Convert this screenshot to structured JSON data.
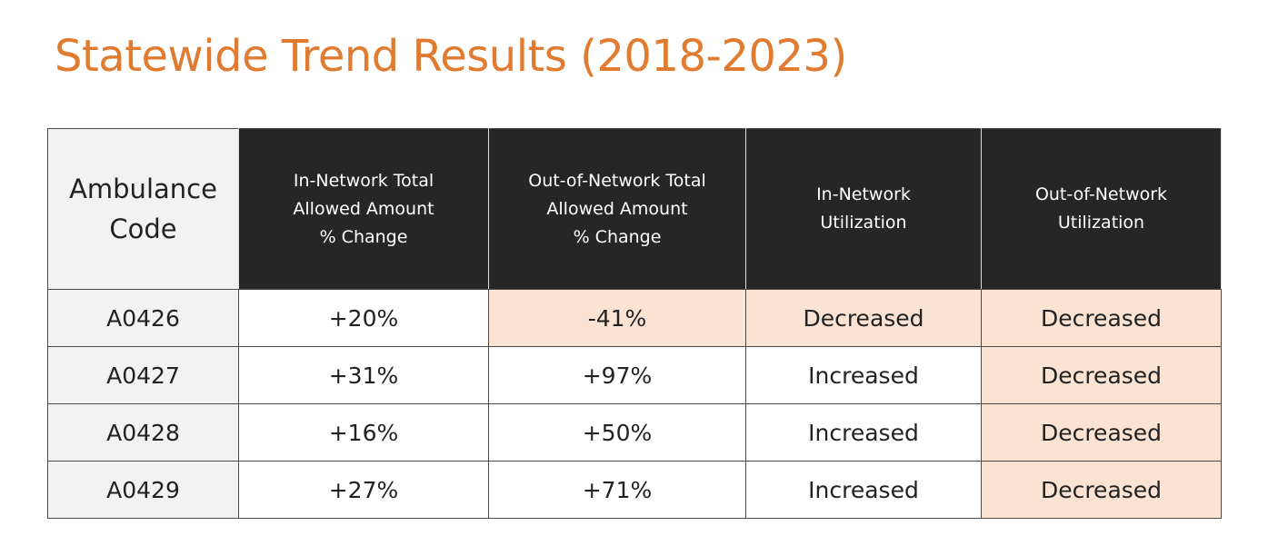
{
  "title": "Statewide Trend Results (2018-2023)",
  "table": {
    "header": [
      "Ambulance\nCode",
      "In-Network Total\nAllowed Amount\n% Change",
      "Out-of-Network Total\nAllowed Amount\n% Change",
      "In-Network\nUtilization",
      "Out-of-Network\nUtilization"
    ],
    "rows": [
      [
        "A0426",
        "+20%",
        "-41%",
        "Decreased",
        "Decreased"
      ],
      [
        "A0427",
        "+31%",
        "+97%",
        "Increased",
        "Decreased"
      ],
      [
        "A0428",
        "+16%",
        "+50%",
        "Increased",
        "Decreased"
      ],
      [
        "A0429",
        "+27%",
        "+71%",
        "Increased",
        "Decreased"
      ]
    ]
  }
}
